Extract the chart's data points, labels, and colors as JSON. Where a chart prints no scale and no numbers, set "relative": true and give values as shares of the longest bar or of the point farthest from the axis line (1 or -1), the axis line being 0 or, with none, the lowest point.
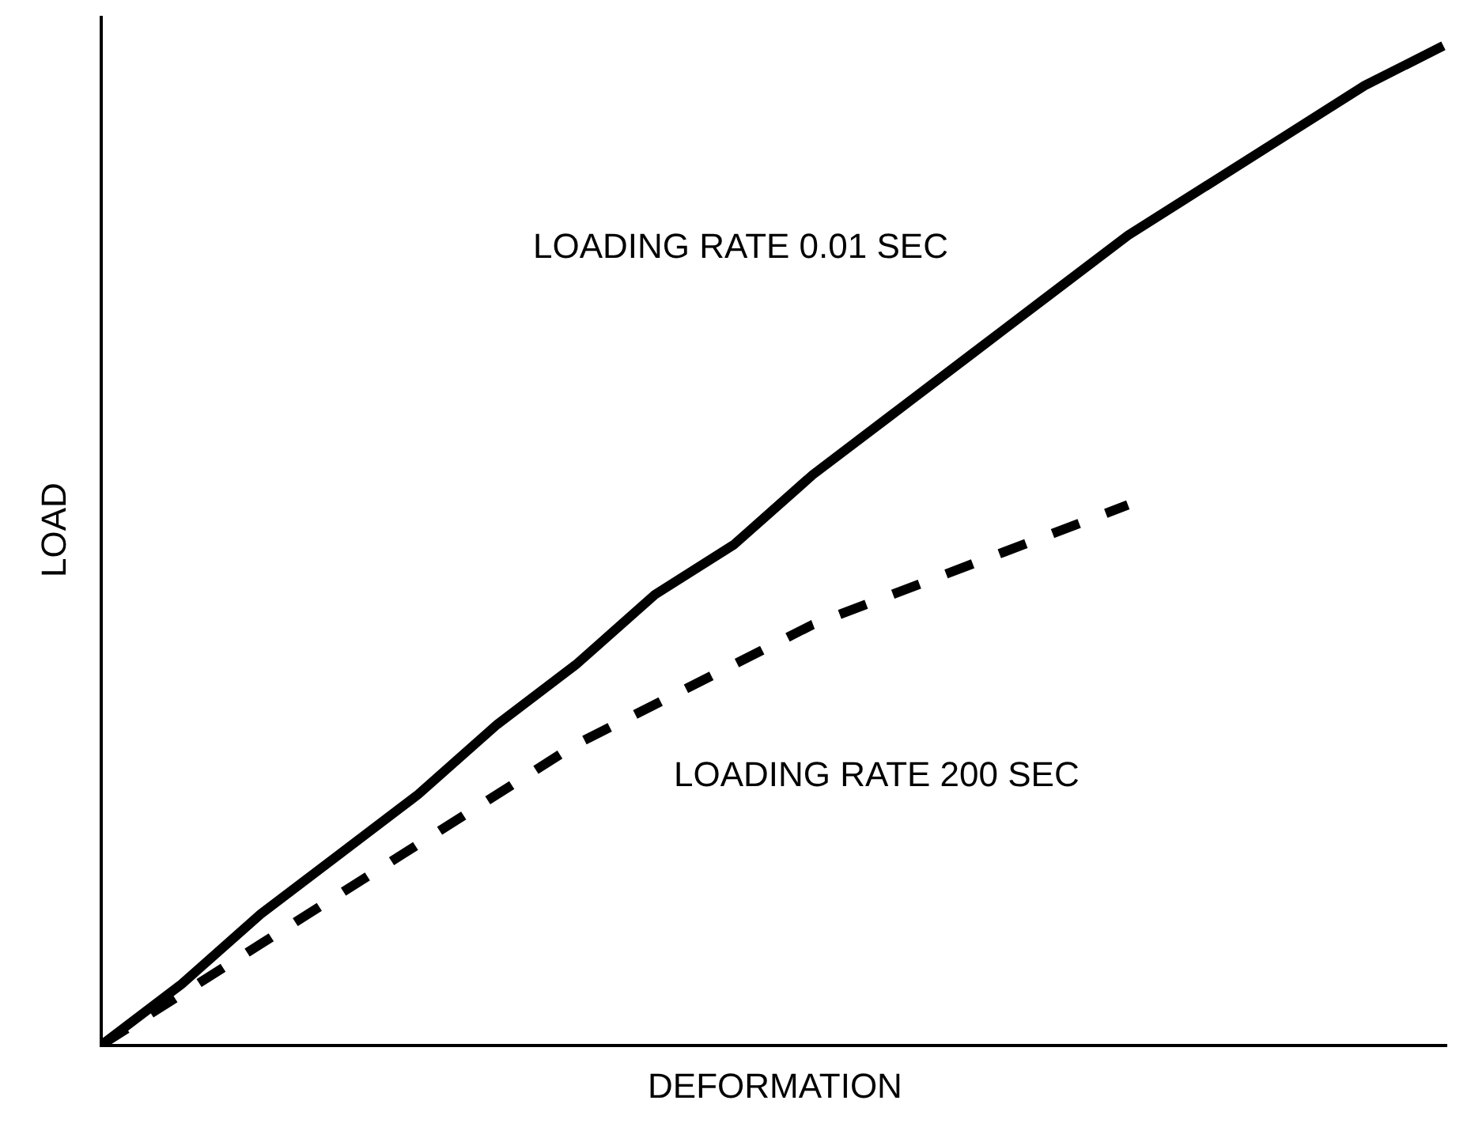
{
  "chart_data": {
    "type": "line",
    "xlabel": "DEFORMATION",
    "ylabel": "LOAD",
    "relative": true,
    "categories": [
      null,
      null,
      null,
      null,
      null,
      null,
      null,
      null,
      null,
      null,
      null,
      null,
      null,
      null,
      null,
      null,
      null,
      null
    ],
    "series": [
      {
        "name": "LOADING RATE 0.01 SEC",
        "color": "#000000",
        "line_style": "solid",
        "values": [
          0,
          0.06,
          0.13,
          0.19,
          0.25,
          0.32,
          0.38,
          0.45,
          0.5,
          0.57,
          0.63,
          0.69,
          0.75,
          0.81,
          0.86,
          0.91,
          0.96,
          1
        ]
      },
      {
        "name": "LOADING RATE 200 SEC",
        "color": "#000000",
        "line_style": "dashed",
        "values": [
          0,
          0.05,
          0.1,
          0.15,
          0.2,
          0.25,
          0.3,
          0.34,
          0.38,
          0.42,
          0.45,
          0.48,
          0.51,
          0.54,
          null,
          null,
          null,
          null
        ]
      }
    ],
    "legend": false,
    "marker": "none"
  }
}
